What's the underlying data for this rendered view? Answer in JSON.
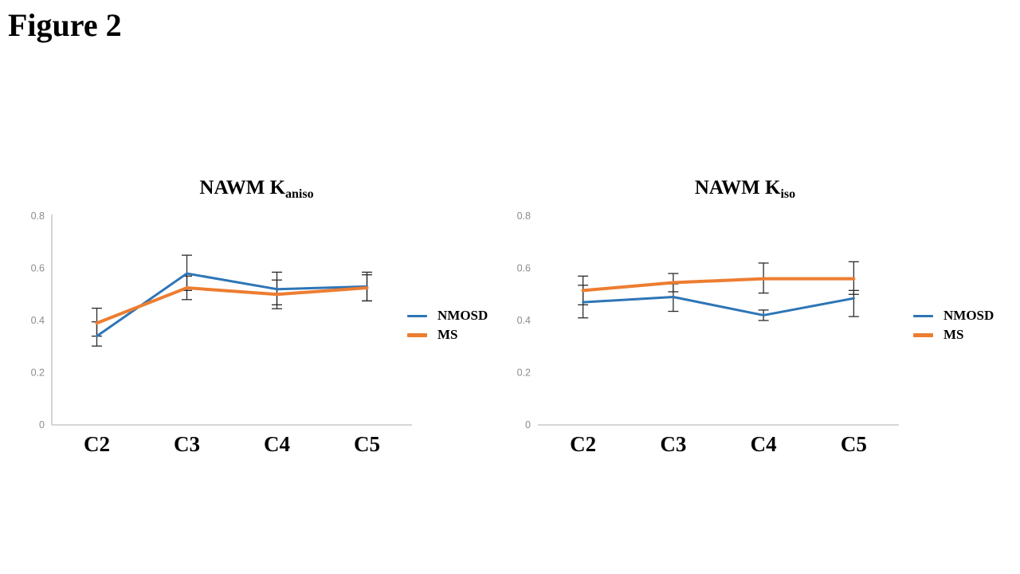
{
  "figure_label": "Figure 2",
  "chart_data": [
    {
      "type": "line",
      "title_main": "NAWM K",
      "title_sub": "aniso",
      "title_full": "NAWM Kaniso",
      "categories": [
        "C2",
        "C3",
        "C4",
        "C5"
      ],
      "ylim": [
        0,
        0.8
      ],
      "yticks": [
        0,
        0.2,
        0.4,
        0.6,
        0.8
      ],
      "ytick_labels": [
        "0",
        "0.2",
        "0.4",
        "0.6",
        "0.8"
      ],
      "grid": false,
      "y_axis_line": true,
      "legend_position": "right",
      "axis_color": "#c9c9c9",
      "tick_label_color": "#8c8c8c",
      "error_bar_color": "#2b2b2b",
      "series": [
        {
          "name": "NMOSD",
          "color": "#2E75B6",
          "line_width": 3,
          "values": [
            0.34,
            0.58,
            0.52,
            0.53
          ],
          "err_up": [
            0.055,
            0.07,
            0.065,
            0.055
          ],
          "err_down": [
            0.038,
            0.065,
            0.06,
            0.055
          ]
        },
        {
          "name": "MS",
          "color": "#ED7D31",
          "line_width": 4,
          "values": [
            0.39,
            0.525,
            0.5,
            0.525
          ],
          "err_up": [
            0.057,
            0.045,
            0.055,
            0.05
          ],
          "err_down": [
            0.05,
            0.045,
            0.055,
            0.05
          ]
        }
      ]
    },
    {
      "type": "line",
      "title_main": "NAWM K",
      "title_sub": "iso",
      "title_full": "NAWM Kiso",
      "categories": [
        "C2",
        "C3",
        "C4",
        "C5"
      ],
      "ylim": [
        0,
        0.8
      ],
      "yticks": [
        0,
        0.2,
        0.4,
        0.6,
        0.8
      ],
      "ytick_labels": [
        "0",
        "0.2",
        "0.4",
        "0.6",
        "0.8"
      ],
      "grid": false,
      "y_axis_line": false,
      "legend_position": "right",
      "axis_color": "#c9c9c9",
      "tick_label_color": "#8c8c8c",
      "error_bar_color": "#2b2b2b",
      "series": [
        {
          "name": "NMOSD",
          "color": "#2E75B6",
          "line_width": 3,
          "values": [
            0.47,
            0.49,
            0.42,
            0.485
          ],
          "err_up": [
            0.065,
            0.05,
            0.02,
            0.03
          ],
          "err_down": [
            0.06,
            0.055,
            0.02,
            0.07
          ]
        },
        {
          "name": "MS",
          "color": "#ED7D31",
          "line_width": 4,
          "values": [
            0.515,
            0.545,
            0.56,
            0.56
          ],
          "err_up": [
            0.055,
            0.035,
            0.06,
            0.065
          ],
          "err_down": [
            0.055,
            0.035,
            0.055,
            0.06
          ]
        }
      ]
    }
  ]
}
